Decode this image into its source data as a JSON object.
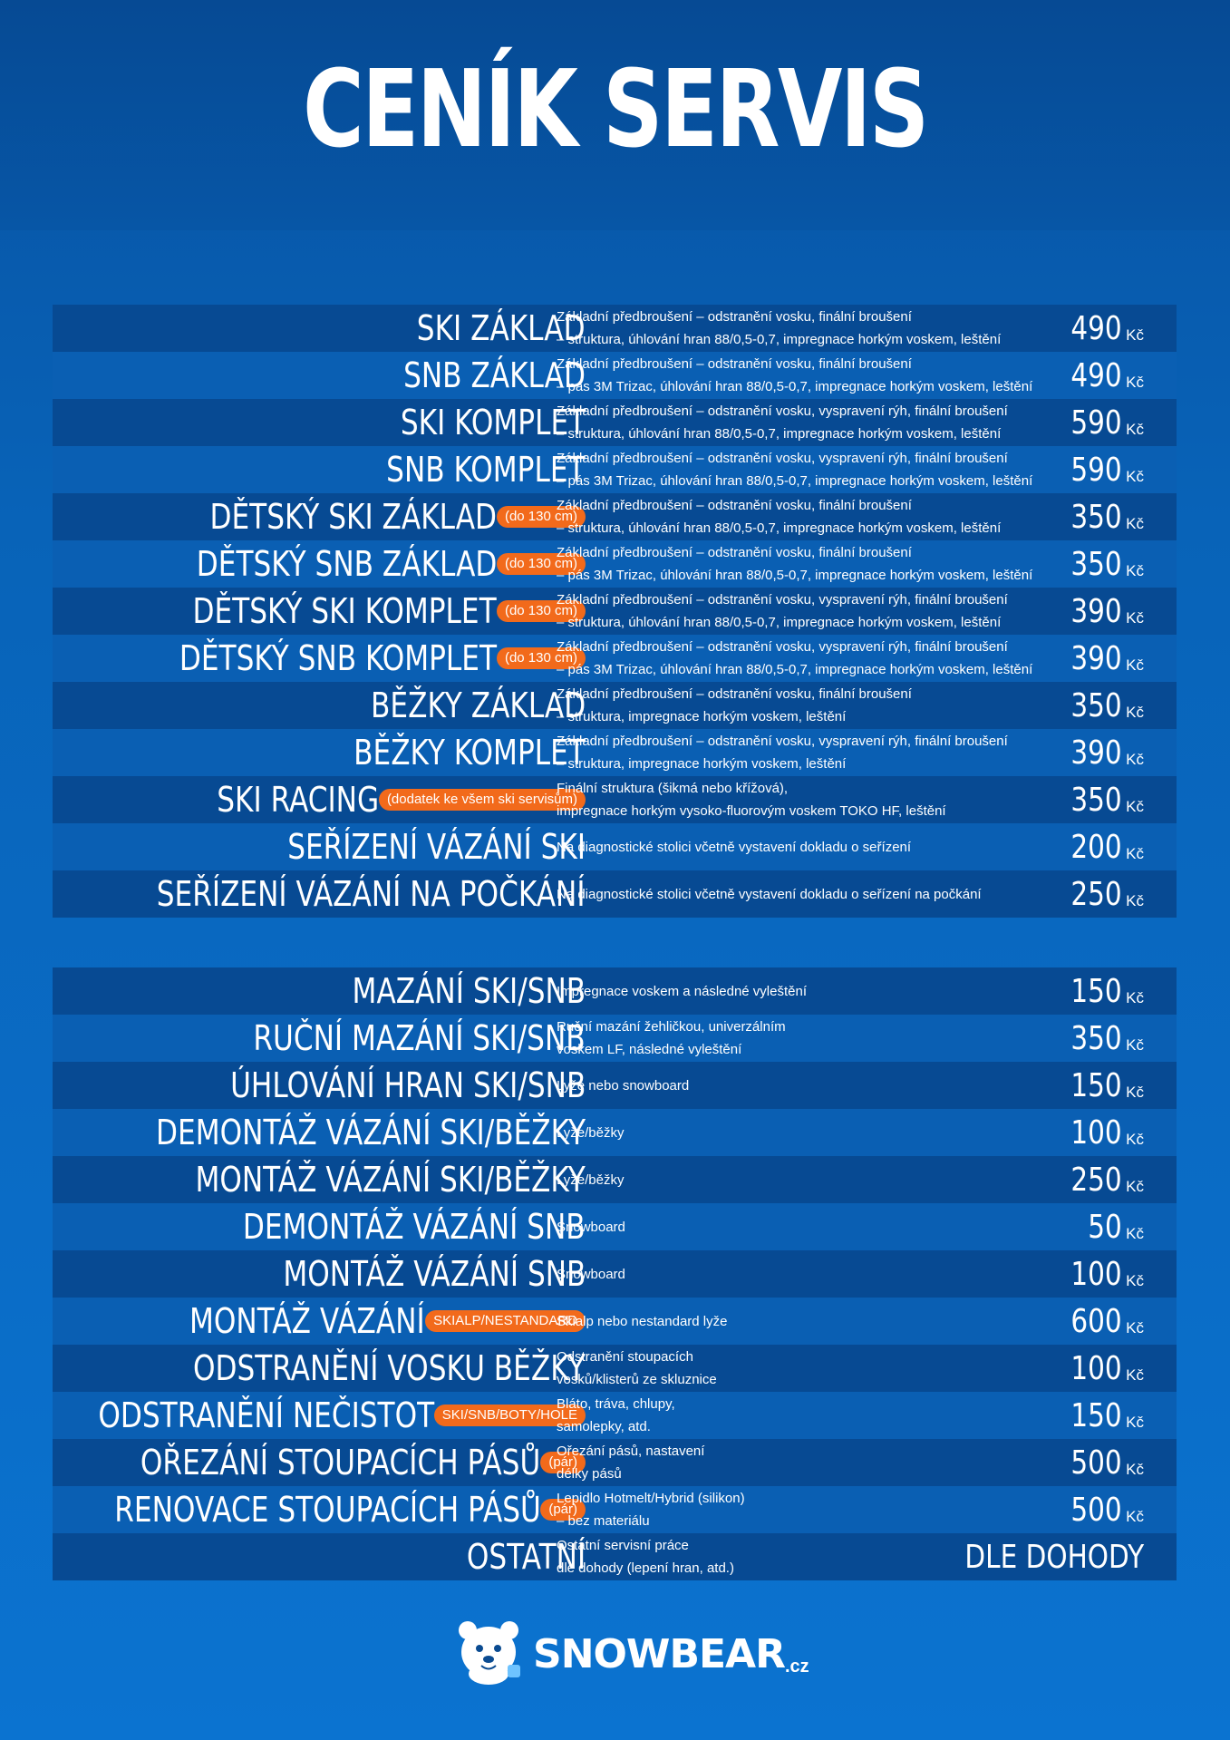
{
  "title": "CENÍK SERVIS",
  "currency": "Kč",
  "section1": [
    {
      "name": "SKI ZÁKLAD",
      "tag": "",
      "desc1": "Základní předbroušení – odstranění vosku, finální broušení",
      "desc2": "– struktura, úhlování hran 88/0,5-0,7, impregnace horkým voskem, leštění",
      "price": "490"
    },
    {
      "name": "SNB ZÁKLAD",
      "tag": "",
      "desc1": "Základní předbroušení – odstranění vosku, finální broušení",
      "desc2": "– pás 3M Trizac, úhlování hran 88/0,5-0,7, impregnace horkým voskem, leštění",
      "price": "490"
    },
    {
      "name": "SKI KOMPLET",
      "tag": "",
      "desc1": "Základní předbroušení – odstranění vosku, vyspravení rýh, finální broušení",
      "desc2": "– struktura, úhlování hran 88/0,5-0,7, impregnace horkým voskem, leštění",
      "price": "590"
    },
    {
      "name": "SNB KOMPLET",
      "tag": "",
      "desc1": "Základní předbroušení – odstranění vosku, vyspravení rýh, finální broušení",
      "desc2": "– pás 3M Trizac, úhlování hran 88/0,5-0,7, impregnace horkým voskem, leštění",
      "price": "590"
    },
    {
      "name": "DĚTSKÝ SKI ZÁKLAD",
      "tag": "(do 130 cm)",
      "desc1": "Základní předbroušení – odstranění vosku, finální broušení",
      "desc2": "– struktura, úhlování hran 88/0,5-0,7, impregnace horkým voskem, leštění",
      "price": "350"
    },
    {
      "name": "DĚTSKÝ SNB ZÁKLAD",
      "tag": "(do 130 cm)",
      "desc1": "Základní předbroušení – odstranění vosku, finální broušení",
      "desc2": "– pás 3M Trizac, úhlování hran 88/0,5-0,7, impregnace horkým voskem, leštění",
      "price": "350"
    },
    {
      "name": "DĚTSKÝ SKI KOMPLET",
      "tag": "(do 130 cm)",
      "desc1": "Základní předbroušení – odstranění vosku, vyspravení rýh, finální broušení",
      "desc2": "– struktura, úhlování hran 88/0,5-0,7, impregnace horkým voskem, leštění",
      "price": "390"
    },
    {
      "name": "DĚTSKÝ SNB KOMPLET",
      "tag": "(do 130 cm)",
      "desc1": "Základní předbroušení – odstranění vosku, vyspravení rýh, finální broušení",
      "desc2": "– pás 3M Trizac, úhlování hran 88/0,5-0,7, impregnace horkým voskem, leštění",
      "price": "390"
    },
    {
      "name": "BĚŽKY ZÁKLAD",
      "tag": "",
      "desc1": "Základní předbroušení – odstranění vosku, finální broušení",
      "desc2": "– struktura, impregnace horkým voskem, leštění",
      "price": "350"
    },
    {
      "name": "BĚŽKY KOMPLET",
      "tag": "",
      "desc1": "Základní předbroušení – odstranění vosku, vyspravení rýh, finální broušení",
      "desc2": "– struktura, impregnace horkým voskem, leštění",
      "price": "390"
    },
    {
      "name": "SKI RACING",
      "tag": "(dodatek ke všem ski servisům)",
      "desc1": "Finální struktura (šikmá nebo křížová),",
      "desc2": "impregnace horkým vysoko-fluorovým voskem TOKO HF, leštění",
      "price": "350"
    },
    {
      "name": "SEŘÍZENÍ VÁZÁNÍ SKI",
      "tag": "",
      "desc1": "Na diagnostické stolici včetně vystavení dokladu o seřízení",
      "desc2": "",
      "price": "200"
    },
    {
      "name": "SEŘÍZENÍ VÁZÁNÍ NA POČKÁNÍ",
      "tag": "",
      "desc1": "Na diagnostické stolici včetně vystavení dokladu o seřízení na počkání",
      "desc2": "",
      "price": "250"
    }
  ],
  "section2": [
    {
      "name": "MAZÁNÍ SKI/SNB",
      "tag": "",
      "desc1": "Impregnace voskem a následné vyleštění",
      "desc2": "",
      "price": "150"
    },
    {
      "name": "RUČNÍ MAZÁNÍ SKI/SNB",
      "tag": "",
      "desc1": "Ruční mazání žehličkou, univerzálním",
      "desc2": "voskem LF, následné vyleštění",
      "price": "350"
    },
    {
      "name": "ÚHLOVÁNÍ HRAN SKI/SNB",
      "tag": "",
      "desc1": "Lyže nebo snowboard",
      "desc2": "",
      "price": "150"
    },
    {
      "name": "DEMONTÁŽ VÁZÁNÍ SKI/BĚŽKY",
      "tag": "",
      "desc1": "Lyže/běžky",
      "desc2": "",
      "price": "100"
    },
    {
      "name": "MONTÁŽ VÁZÁNÍ SKI/BĚŽKY",
      "tag": "",
      "desc1": "Lyže/běžky",
      "desc2": "",
      "price": "250"
    },
    {
      "name": "DEMONTÁŽ VÁZÁNÍ SNB",
      "tag": "",
      "desc1": "Snowboard",
      "desc2": "",
      "price": "50"
    },
    {
      "name": "MONTÁŽ VÁZÁNÍ SNB",
      "tag": "",
      "desc1": "Snowboard",
      "desc2": "",
      "price": "100"
    },
    {
      "name": "MONTÁŽ VÁZÁNÍ",
      "tag": "SKIALP/NESTANDARD",
      "desc1": "Skialp nebo nestandard lyže",
      "desc2": "",
      "price": "600"
    },
    {
      "name": "ODSTRANĚNÍ VOSKU BĚŽKY",
      "tag": "",
      "desc1": "Odstranění stoupacích",
      "desc2": "vosků/klisterů ze skluznice",
      "price": "100"
    },
    {
      "name": "ODSTRANĚNÍ NEČISTOT",
      "tag": "SKI/SNB/BOTY/HOLE",
      "desc1": "Bláto, tráva, chlupy,",
      "desc2": "samolepky, atd.",
      "price": "150"
    },
    {
      "name": "OŘEZÁNÍ STOUPACÍCH PÁSŮ",
      "tag": "(pár)",
      "desc1": "Ořezání pásů, nastavení",
      "desc2": "délky pásů",
      "price": "500"
    },
    {
      "name": "RENOVACE STOUPACÍCH PÁSŮ",
      "tag": "(pár)",
      "desc1": "Lepidlo Hotmelt/Hybrid (silikon)",
      "desc2": "– bez materiálu",
      "price": "500"
    },
    {
      "name": "OSTATNÍ",
      "tag": "",
      "desc1": "Ostatní servisní práce",
      "desc2": "dle dohody (lepení hran, atd.)",
      "price": "DLE DOHODY",
      "no_currency": true
    }
  ],
  "logo": {
    "name": "SNOWBEAR",
    "suffix": ".cz"
  },
  "colors": {
    "accent": "#f26a1b",
    "row_dark": "#074a93",
    "row_mid": "#0a5fb3",
    "background": "#0863b8"
  },
  "icons": {
    "logo": "polar-bear-icon"
  }
}
